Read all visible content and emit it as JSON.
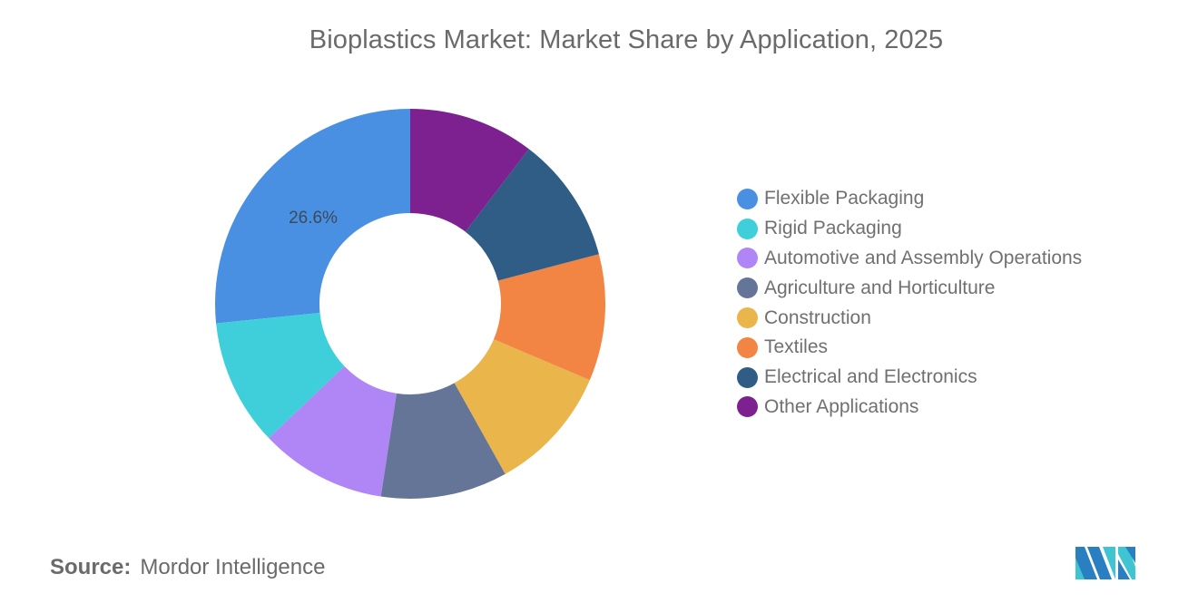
{
  "header": {
    "title": "Bioplastics Market: Market Share by Application, 2025"
  },
  "footer": {
    "source_key": "Source:",
    "source_value": "Mordor Intelligence"
  },
  "logo": {
    "name": "mordor-intelligence-logo",
    "colors": [
      "#2a7fc1",
      "#3ec5d1"
    ]
  },
  "chart_data": {
    "type": "pie",
    "subtype": "donut",
    "title": "Bioplastics Market: Market Share by Application, 2025",
    "categories": [
      "Flexible Packaging",
      "Rigid Packaging",
      "Automotive and Assembly Operations",
      "Agriculture and Horticulture",
      "Construction",
      "Textiles",
      "Electrical and Electronics",
      "Other Applications"
    ],
    "values": [
      26.6,
      10.5,
      10.5,
      10.5,
      10.5,
      10.5,
      10.5,
      10.4
    ],
    "colors": [
      "#4a90e2",
      "#3ecfda",
      "#b085f5",
      "#647597",
      "#eab54b",
      "#f28444",
      "#2f5d85",
      "#7d2190"
    ],
    "data_labels": [
      {
        "category": "Flexible Packaging",
        "text": "26.6%"
      }
    ],
    "legend_position": "right",
    "direction": "counter-clockwise from 12 o'clock (Flexible Packaging ends at top)",
    "unit": "%"
  },
  "legend": {
    "items": [
      {
        "label": "Flexible Packaging",
        "color": "#4a90e2"
      },
      {
        "label": "Rigid Packaging",
        "color": "#3ecfda"
      },
      {
        "label": "Automotive and Assembly Operations",
        "color": "#b085f5"
      },
      {
        "label": "Agriculture and Horticulture",
        "color": "#647597"
      },
      {
        "label": "Construction",
        "color": "#eab54b"
      },
      {
        "label": "Textiles",
        "color": "#f28444"
      },
      {
        "label": "Electrical and Electronics",
        "color": "#2f5d85"
      },
      {
        "label": "Other Applications",
        "color": "#7d2190"
      }
    ]
  }
}
